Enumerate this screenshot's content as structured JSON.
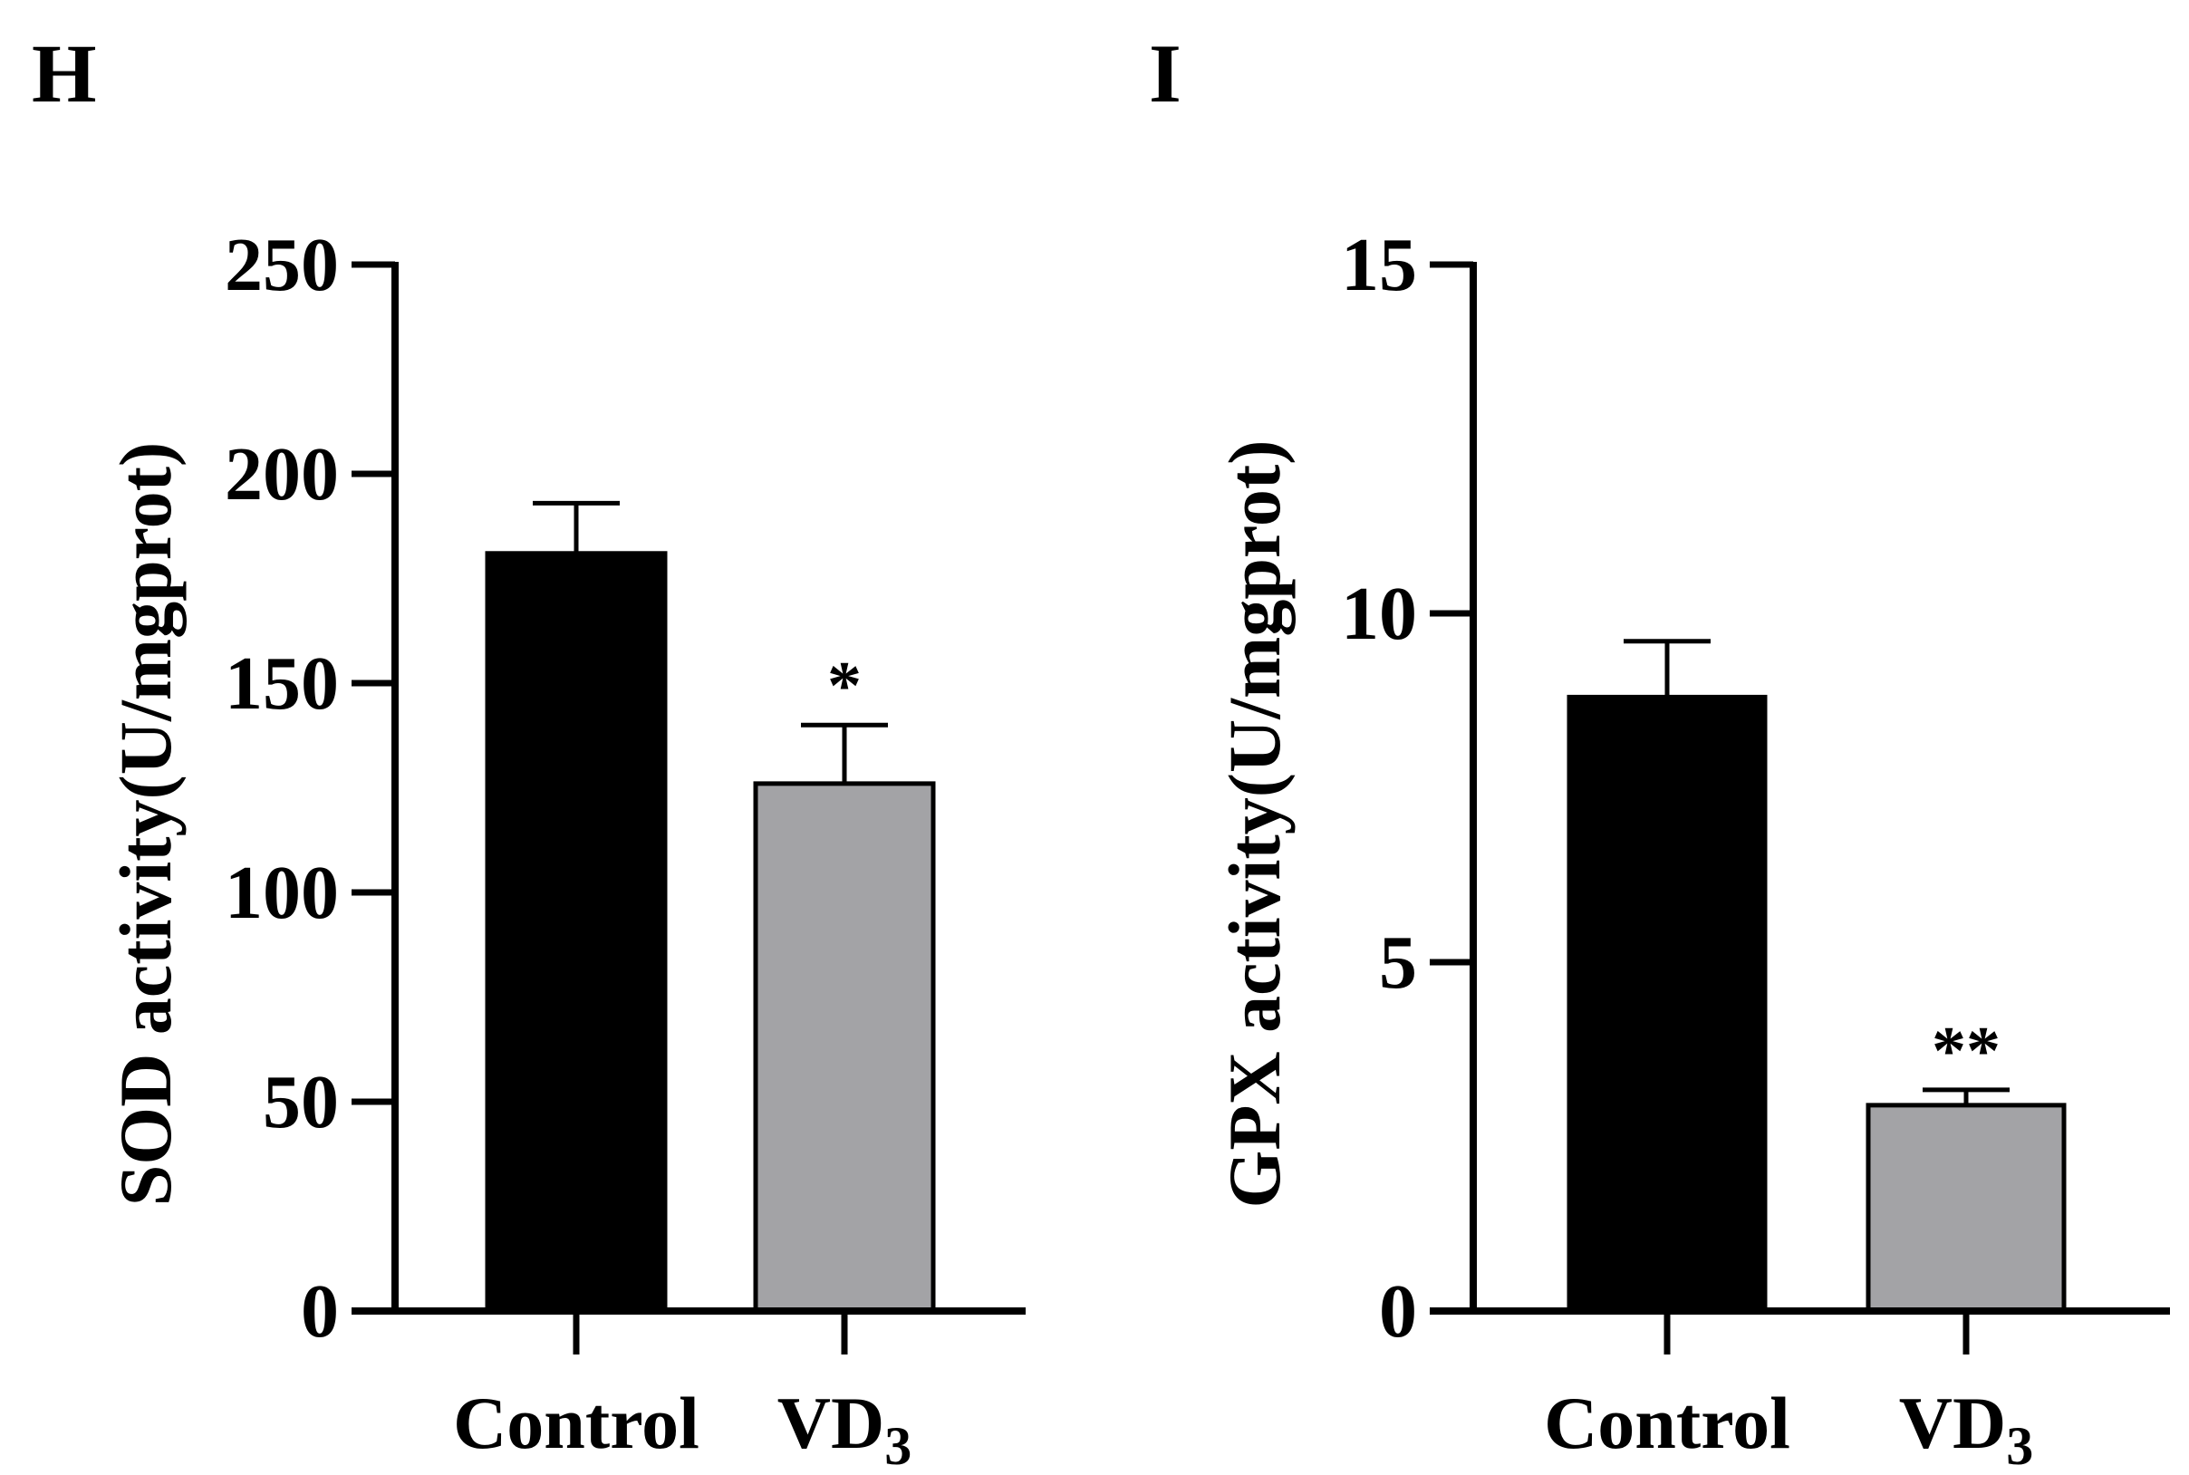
{
  "chart_data": [
    {
      "panel": "H",
      "type": "bar",
      "title": "",
      "xlabel": "",
      "ylabel": "SOD activity(U/mgprot)",
      "ylim": [
        0,
        250
      ],
      "yticks": [
        "0",
        "50",
        "100",
        "150",
        "200",
        "250"
      ],
      "categories": [
        {
          "label": "Control",
          "sub": ""
        },
        {
          "label": "VD",
          "sub": "3"
        }
      ],
      "values": [
        181,
        126
      ],
      "errors": [
        12,
        14
      ],
      "significance": [
        "",
        "*"
      ],
      "colors": [
        "#000000",
        "#a3a3a6"
      ]
    },
    {
      "panel": "I",
      "type": "bar",
      "title": "",
      "xlabel": "",
      "ylabel": "GPX activity(U/mgprot)",
      "ylim": [
        0,
        15
      ],
      "yticks": [
        "0",
        "5",
        "10",
        "15"
      ],
      "categories": [
        {
          "label": "Control",
          "sub": ""
        },
        {
          "label": "VD",
          "sub": "3"
        }
      ],
      "values": [
        8.8,
        2.95
      ],
      "errors": [
        0.8,
        0.22
      ],
      "significance": [
        "",
        "**"
      ],
      "colors": [
        "#000000",
        "#a3a3a6"
      ]
    }
  ]
}
